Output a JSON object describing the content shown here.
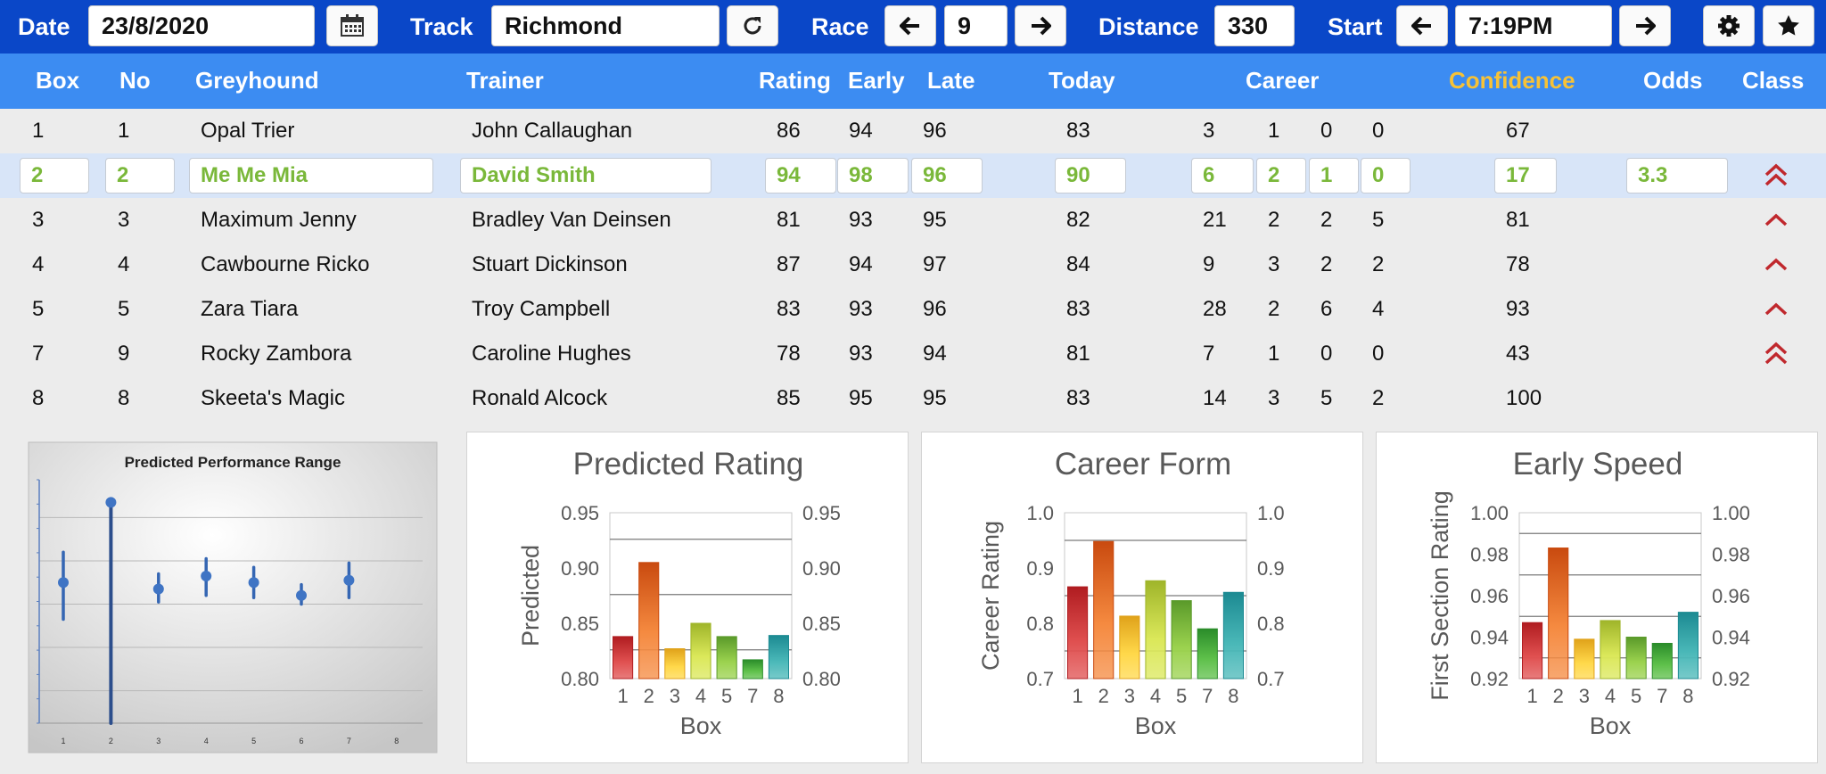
{
  "toolbar": {
    "date_label": "Date",
    "date_value": "23/8/2020",
    "track_label": "Track",
    "track_value": "Richmond",
    "race_label": "Race",
    "race_value": "9",
    "distance_label": "Distance",
    "distance_value": "330",
    "start_label": "Start",
    "start_value": "7:19PM",
    "icons": [
      "calendar-icon",
      "refresh-icon",
      "arrow-left-icon",
      "arrow-right-icon",
      "gear-icon",
      "star-icon"
    ]
  },
  "columns": {
    "box": "Box",
    "no": "No",
    "greyhound": "Greyhound",
    "trainer": "Trainer",
    "rating": "Rating",
    "early": "Early",
    "late": "Late",
    "today": "Today",
    "career": "Career",
    "confidence": "Confidence",
    "odds": "Odds",
    "class": "Class"
  },
  "colors": {
    "toolbar": "#0a47c8",
    "header": "#3c8cf2",
    "confidence_header": "#f7c236",
    "selected_text": "#7ab83a",
    "selected_row": "#d8e5f8",
    "class_icon": "#c0282d"
  },
  "rows": [
    {
      "box": "1",
      "no": "1",
      "greyhound": "Opal Trier",
      "trainer": "John Callaughan",
      "rating": "86",
      "early": "94",
      "late": "96",
      "today": "83",
      "c1": "3",
      "c2": "1",
      "c3": "0",
      "c4": "0",
      "confidence": "67",
      "odds": "",
      "class_icon": "",
      "selected": false
    },
    {
      "box": "2",
      "no": "2",
      "greyhound": "Me Me Mia",
      "trainer": "David Smith",
      "rating": "94",
      "early": "98",
      "late": "96",
      "today": "90",
      "c1": "6",
      "c2": "2",
      "c3": "1",
      "c4": "0",
      "confidence": "17",
      "odds": "3.3",
      "class_icon": "double-chevron-up-icon",
      "selected": true
    },
    {
      "box": "3",
      "no": "3",
      "greyhound": "Maximum Jenny",
      "trainer": "Bradley Van Deinsen",
      "rating": "81",
      "early": "93",
      "late": "95",
      "today": "82",
      "c1": "21",
      "c2": "2",
      "c3": "2",
      "c4": "5",
      "confidence": "81",
      "odds": "",
      "class_icon": "chevron-up-icon",
      "selected": false
    },
    {
      "box": "4",
      "no": "4",
      "greyhound": "Cawbourne Ricko",
      "trainer": "Stuart Dickinson",
      "rating": "87",
      "early": "94",
      "late": "97",
      "today": "84",
      "c1": "9",
      "c2": "3",
      "c3": "2",
      "c4": "2",
      "confidence": "78",
      "odds": "",
      "class_icon": "chevron-up-icon",
      "selected": false
    },
    {
      "box": "5",
      "no": "5",
      "greyhound": "Zara Tiara",
      "trainer": "Troy Campbell",
      "rating": "83",
      "early": "93",
      "late": "96",
      "today": "83",
      "c1": "28",
      "c2": "2",
      "c3": "6",
      "c4": "4",
      "confidence": "93",
      "odds": "",
      "class_icon": "chevron-up-icon",
      "selected": false
    },
    {
      "box": "7",
      "no": "9",
      "greyhound": "Rocky Zambora",
      "trainer": "Caroline Hughes",
      "rating": "78",
      "early": "93",
      "late": "94",
      "today": "81",
      "c1": "7",
      "c2": "1",
      "c3": "0",
      "c4": "0",
      "confidence": "43",
      "odds": "",
      "class_icon": "double-chevron-up-icon",
      "selected": false
    },
    {
      "box": "8",
      "no": "8",
      "greyhound": "Skeeta's Magic",
      "trainer": "Ronald Alcock",
      "rating": "85",
      "early": "95",
      "late": "95",
      "today": "83",
      "c1": "14",
      "c2": "3",
      "c3": "5",
      "c4": "2",
      "confidence": "100",
      "odds": "",
      "class_icon": "",
      "selected": false
    }
  ],
  "chart_data": [
    {
      "type": "scatter",
      "title": "Predicted Performance Range",
      "categories": [
        "1",
        "2",
        "3",
        "4",
        "5",
        "6",
        "7",
        "8"
      ],
      "points": [
        {
          "x": "1",
          "value": 0.65,
          "low": 0.48,
          "high": 0.79
        },
        {
          "x": "2",
          "value": 1.02,
          "low": 0.0,
          "high": 1.02
        },
        {
          "x": "3",
          "value": 0.62,
          "low": 0.56,
          "high": 0.69
        },
        {
          "x": "4",
          "value": 0.68,
          "low": 0.59,
          "high": 0.76
        },
        {
          "x": "5",
          "value": 0.65,
          "low": 0.58,
          "high": 0.72
        },
        {
          "x": "6",
          "value": 0.59,
          "low": 0.55,
          "high": 0.64
        },
        {
          "x": "7",
          "value": 0.66,
          "low": 0.58,
          "high": 0.74
        }
      ],
      "ylim": [
        0,
        1.1
      ],
      "grid": true
    },
    {
      "type": "bar",
      "title": "Predicted Rating",
      "xlabel": "Box",
      "ylabel": "Predicted",
      "categories": [
        "1",
        "2",
        "3",
        "4",
        "5",
        "7",
        "8"
      ],
      "values": [
        0.838,
        0.905,
        0.827,
        0.85,
        0.838,
        0.817,
        0.839
      ],
      "ylim": [
        0.8,
        0.95
      ],
      "yticks": [
        "0.80",
        "0.85",
        "0.90",
        "0.95"
      ],
      "grid_lines": [
        0.826,
        0.876,
        0.926
      ]
    },
    {
      "type": "bar",
      "title": "Career Form",
      "xlabel": "Box",
      "ylabel": "Career Rating",
      "categories": [
        "1",
        "2",
        "3",
        "4",
        "5",
        "7",
        "8"
      ],
      "values": [
        0.866,
        0.948,
        0.813,
        0.877,
        0.841,
        0.79,
        0.856
      ],
      "ylim": [
        0.7,
        1.0
      ],
      "yticks": [
        "0.7",
        "0.8",
        "0.9",
        "1.0"
      ],
      "grid_lines": [
        0.75,
        0.85,
        0.95
      ]
    },
    {
      "type": "bar",
      "title": "Early Speed",
      "xlabel": "Box",
      "ylabel": "First Section Rating",
      "categories": [
        "1",
        "2",
        "3",
        "4",
        "5",
        "7",
        "8"
      ],
      "values": [
        0.947,
        0.983,
        0.939,
        0.948,
        0.94,
        0.937,
        0.952
      ],
      "ylim": [
        0.92,
        1.0
      ],
      "yticks": [
        "0.92",
        "0.94",
        "0.96",
        "0.98",
        "1.00"
      ],
      "grid_lines": [
        0.93,
        0.95,
        0.97,
        0.99
      ]
    }
  ]
}
